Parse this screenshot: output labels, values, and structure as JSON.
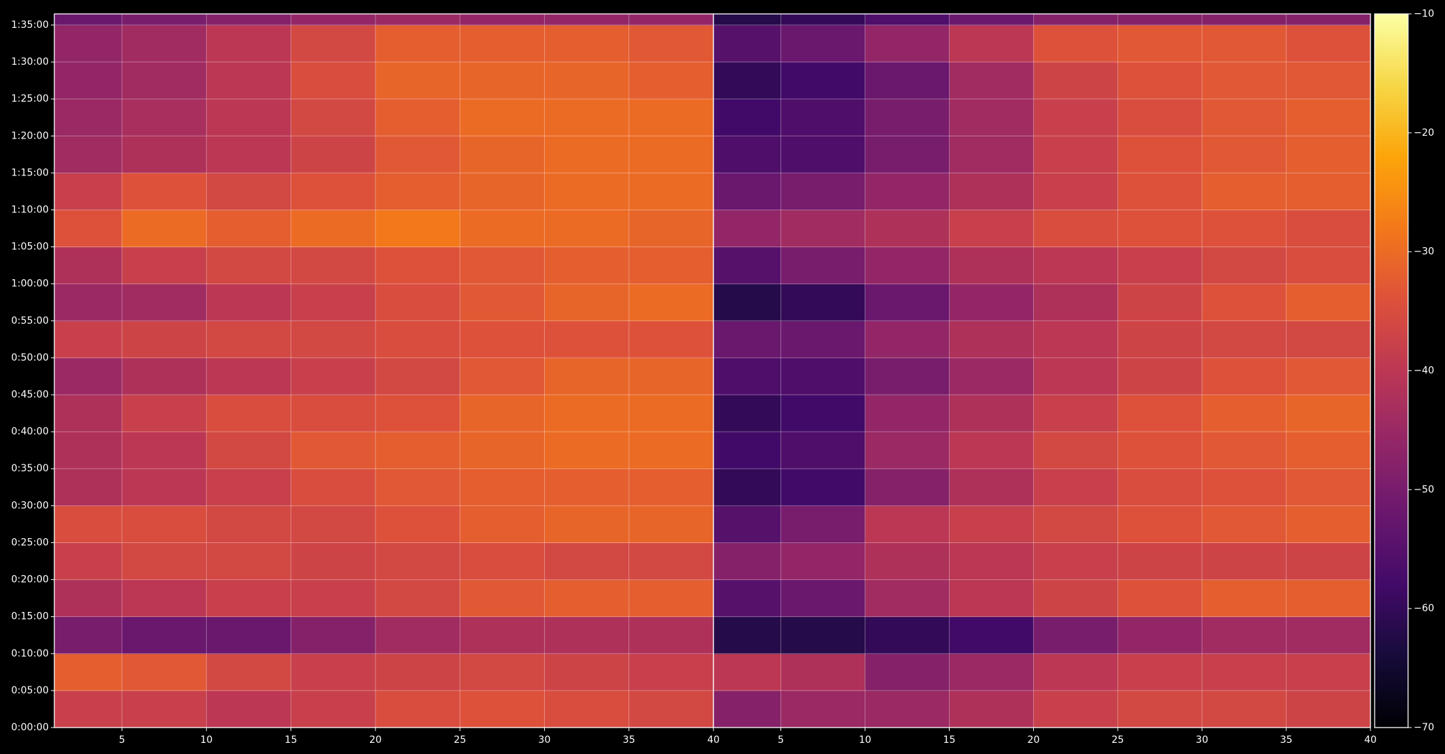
{
  "chart_data": [
    {
      "type": "heatmap",
      "colormap": "inferno",
      "clim": [
        -70,
        -10
      ],
      "xbins": [
        0,
        5,
        10,
        15,
        20,
        25,
        30,
        35,
        40
      ],
      "ybins": [
        0,
        300,
        600,
        900,
        1200,
        1500,
        1800,
        2100,
        2400,
        2700,
        3000,
        3300,
        3600,
        3900,
        4200,
        4500,
        4800,
        5100,
        5400,
        5700,
        6000
      ],
      "xlim": [
        1,
        40
      ],
      "ylim": [
        0,
        5790
      ],
      "grid": true,
      "xticks": [
        5,
        10,
        15,
        20,
        25,
        30,
        35,
        40
      ],
      "yticks": [
        {
          "value": 0,
          "label": "0:00:00"
        },
        {
          "value": 300,
          "label": "0:05:00"
        },
        {
          "value": 600,
          "label": "0:10:00"
        },
        {
          "value": 900,
          "label": "0:15:00"
        },
        {
          "value": 1200,
          "label": "0:20:00"
        },
        {
          "value": 1500,
          "label": "0:25:00"
        },
        {
          "value": 1800,
          "label": "0:30:00"
        },
        {
          "value": 2100,
          "label": "0:35:00"
        },
        {
          "value": 2400,
          "label": "0:40:00"
        },
        {
          "value": 2700,
          "label": "0:45:00"
        },
        {
          "value": 3000,
          "label": "0:50:00"
        },
        {
          "value": 3300,
          "label": "0:55:00"
        },
        {
          "value": 3600,
          "label": "1:00:00"
        },
        {
          "value": 3900,
          "label": "1:05:00"
        },
        {
          "value": 4200,
          "label": "1:10:00"
        },
        {
          "value": 4500,
          "label": "1:15:00"
        },
        {
          "value": 4800,
          "label": "1:20:00"
        },
        {
          "value": 5100,
          "label": "1:25:00"
        },
        {
          "value": 5400,
          "label": "1:30:00"
        },
        {
          "value": 5700,
          "label": "1:35:00"
        }
      ],
      "cticks": [
        {
          "value": -70,
          "label": "−70"
        },
        {
          "value": -60,
          "label": "−60"
        },
        {
          "value": -50,
          "label": "−50"
        },
        {
          "value": -40,
          "label": "−40"
        },
        {
          "value": -30,
          "label": "−30"
        },
        {
          "value": -20,
          "label": "−20"
        },
        {
          "value": -10,
          "label": "−10"
        }
      ],
      "values": [
        [
          -38,
          -38,
          -40,
          -38,
          -35,
          -34,
          -35,
          -36
        ],
        [
          -32,
          -33,
          -36,
          -38,
          -37,
          -36,
          -37,
          -38
        ],
        [
          -50,
          -52,
          -52,
          -48,
          -44,
          -42,
          -42,
          -42
        ],
        [
          -42,
          -40,
          -38,
          -38,
          -36,
          -33,
          -32,
          -32
        ],
        [
          -38,
          -36,
          -36,
          -37,
          -36,
          -35,
          -36,
          -36
        ],
        [
          -35,
          -35,
          -36,
          -36,
          -34,
          -32,
          -31,
          -31
        ],
        [
          -42,
          -40,
          -38,
          -35,
          -33,
          -32,
          -32,
          -32
        ],
        [
          -42,
          -40,
          -36,
          -33,
          -32,
          -31,
          -30,
          -30
        ],
        [
          -42,
          -38,
          -35,
          -35,
          -34,
          -31,
          -30,
          -30
        ],
        [
          -45,
          -42,
          -40,
          -38,
          -36,
          -33,
          -31,
          -31
        ],
        [
          -38,
          -37,
          -36,
          -36,
          -35,
          -34,
          -34,
          -34
        ],
        [
          -45,
          -44,
          -40,
          -38,
          -35,
          -33,
          -31,
          -30
        ],
        [
          -42,
          -38,
          -36,
          -36,
          -34,
          -33,
          -32,
          -32
        ],
        [
          -34,
          -30,
          -32,
          -30,
          -28,
          -30,
          -30,
          -31
        ],
        [
          -38,
          -34,
          -36,
          -34,
          -32,
          -31,
          -30,
          -30
        ],
        [
          -44,
          -42,
          -40,
          -37,
          -33,
          -31,
          -30,
          -30
        ],
        [
          -45,
          -43,
          -40,
          -36,
          -32,
          -30,
          -30,
          -30
        ],
        [
          -46,
          -44,
          -40,
          -35,
          -31,
          -31,
          -31,
          -32
        ],
        [
          -46,
          -44,
          -40,
          -36,
          -32,
          -32,
          -32,
          -33
        ],
        [
          -52,
          -50,
          -48,
          -46,
          -45,
          -46,
          -46,
          -46
        ]
      ]
    },
    {
      "type": "heatmap",
      "colormap": "inferno",
      "clim": [
        -70,
        -10
      ],
      "xbins": [
        0,
        5,
        10,
        15,
        20,
        25,
        30,
        35,
        40
      ],
      "ybins": [
        0,
        300,
        600,
        900,
        1200,
        1500,
        1800,
        2100,
        2400,
        2700,
        3000,
        3300,
        3600,
        3900,
        4200,
        4500,
        4800,
        5100,
        5400,
        5700,
        6000
      ],
      "xlim": [
        1,
        40
      ],
      "ylim": [
        0,
        5790
      ],
      "grid": true,
      "xticks": [
        5,
        10,
        15,
        20,
        25,
        30,
        35,
        40
      ],
      "values": [
        [
          -48,
          -45,
          -45,
          -42,
          -38,
          -36,
          -36,
          -37
        ],
        [
          -40,
          -42,
          -48,
          -45,
          -40,
          -38,
          -38,
          -38
        ],
        [
          -62,
          -62,
          -60,
          -58,
          -50,
          -46,
          -44,
          -44
        ],
        [
          -55,
          -52,
          -44,
          -40,
          -37,
          -34,
          -32,
          -32
        ],
        [
          -48,
          -46,
          -42,
          -40,
          -38,
          -37,
          -37,
          -37
        ],
        [
          -55,
          -50,
          -40,
          -38,
          -36,
          -34,
          -33,
          -32
        ],
        [
          -60,
          -58,
          -48,
          -42,
          -38,
          -35,
          -34,
          -33
        ],
        [
          -58,
          -56,
          -45,
          -40,
          -36,
          -34,
          -33,
          -32
        ],
        [
          -60,
          -58,
          -46,
          -42,
          -38,
          -34,
          -32,
          -31
        ],
        [
          -56,
          -56,
          -50,
          -45,
          -40,
          -37,
          -34,
          -33
        ],
        [
          -52,
          -52,
          -46,
          -42,
          -40,
          -37,
          -36,
          -36
        ],
        [
          -62,
          -60,
          -52,
          -46,
          -42,
          -37,
          -34,
          -32
        ],
        [
          -55,
          -50,
          -46,
          -42,
          -40,
          -38,
          -36,
          -35
        ],
        [
          -46,
          -44,
          -42,
          -38,
          -35,
          -34,
          -34,
          -35
        ],
        [
          -52,
          -50,
          -46,
          -42,
          -38,
          -34,
          -32,
          -32
        ],
        [
          -56,
          -56,
          -50,
          -44,
          -38,
          -34,
          -33,
          -32
        ],
        [
          -58,
          -56,
          -50,
          -44,
          -38,
          -35,
          -33,
          -32
        ],
        [
          -60,
          -58,
          -52,
          -44,
          -37,
          -34,
          -33,
          -33
        ],
        [
          -55,
          -52,
          -46,
          -40,
          -34,
          -33,
          -33,
          -34
        ],
        [
          -62,
          -60,
          -56,
          -52,
          -48,
          -48,
          -48,
          -48
        ]
      ]
    }
  ]
}
